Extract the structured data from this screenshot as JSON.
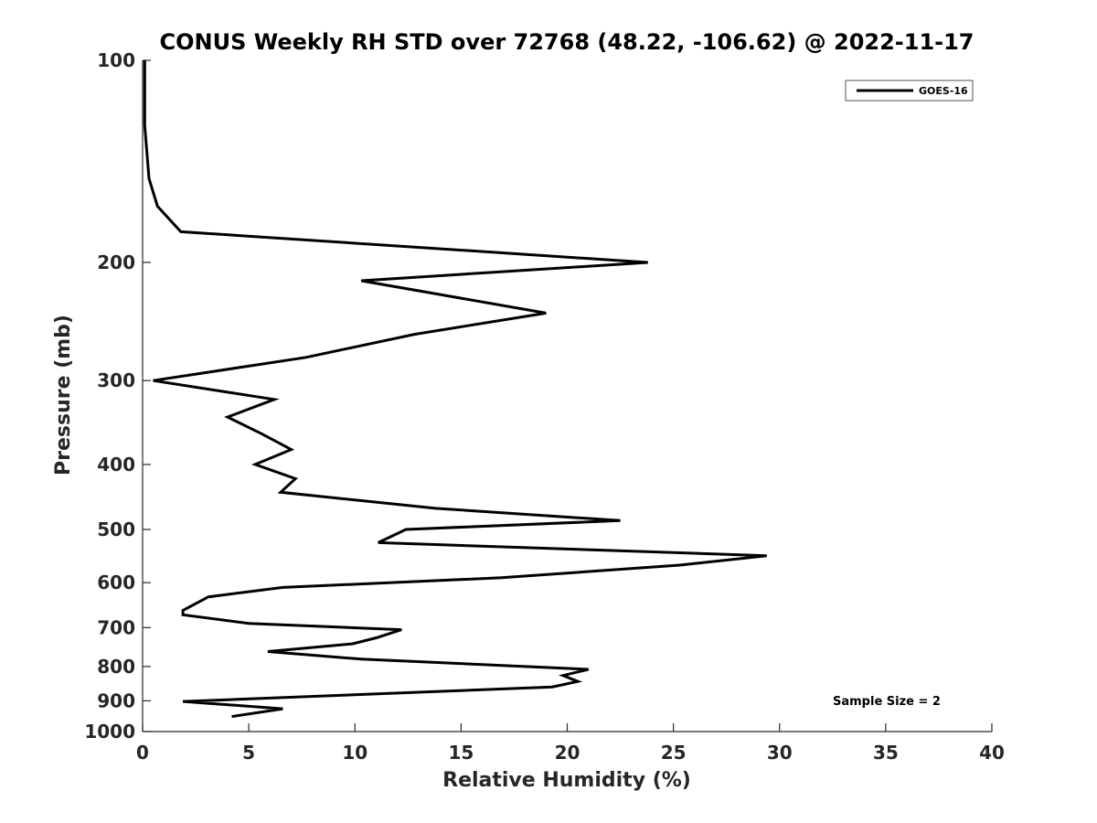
{
  "chart_data": {
    "type": "line",
    "title": "CONUS Weekly RH STD over 72768 (48.22, -106.62) @ 2022-11-17",
    "xlabel": "Relative Humidity (%)",
    "ylabel": "Pressure (mb)",
    "xlim": [
      0,
      40
    ],
    "ylim": [
      1000,
      100
    ],
    "yscale": "log",
    "x_ticks": [
      0,
      5,
      10,
      15,
      20,
      25,
      30,
      35,
      40
    ],
    "y_ticks": [
      100,
      200,
      300,
      400,
      500,
      600,
      700,
      800,
      900,
      1000
    ],
    "grid": false,
    "legend_position": "top-right",
    "annotation": "Sample Size = 2",
    "series": [
      {
        "name": "GOES-16",
        "color": "#000000",
        "points": [
          [
            0.1,
            100
          ],
          [
            0.1,
            125
          ],
          [
            0.3,
            150
          ],
          [
            0.7,
            165
          ],
          [
            1.8,
            180
          ],
          [
            23.8,
            200
          ],
          [
            10.3,
            213
          ],
          [
            19.0,
            238
          ],
          [
            12.8,
            256
          ],
          [
            7.7,
            277
          ],
          [
            0.5,
            300
          ],
          [
            6.2,
            320
          ],
          [
            4.0,
            340
          ],
          [
            5.6,
            360
          ],
          [
            7.0,
            380
          ],
          [
            5.3,
            400
          ],
          [
            7.2,
            420
          ],
          [
            6.5,
            440
          ],
          [
            13.8,
            465
          ],
          [
            22.5,
            485
          ],
          [
            12.4,
            500
          ],
          [
            11.1,
            523
          ],
          [
            29.4,
            547
          ],
          [
            25.3,
            565
          ],
          [
            16.9,
            590
          ],
          [
            6.6,
            610
          ],
          [
            3.1,
            630
          ],
          [
            1.9,
            660
          ],
          [
            1.9,
            670
          ],
          [
            5.0,
            690
          ],
          [
            12.2,
            705
          ],
          [
            11.0,
            725
          ],
          [
            9.9,
            740
          ],
          [
            5.9,
            760
          ],
          [
            10.3,
            780
          ],
          [
            21.0,
            808
          ],
          [
            19.8,
            825
          ],
          [
            20.5,
            842
          ],
          [
            19.3,
            858
          ],
          [
            1.9,
            902
          ],
          [
            6.6,
            925
          ],
          [
            4.2,
            950
          ]
        ]
      }
    ]
  }
}
